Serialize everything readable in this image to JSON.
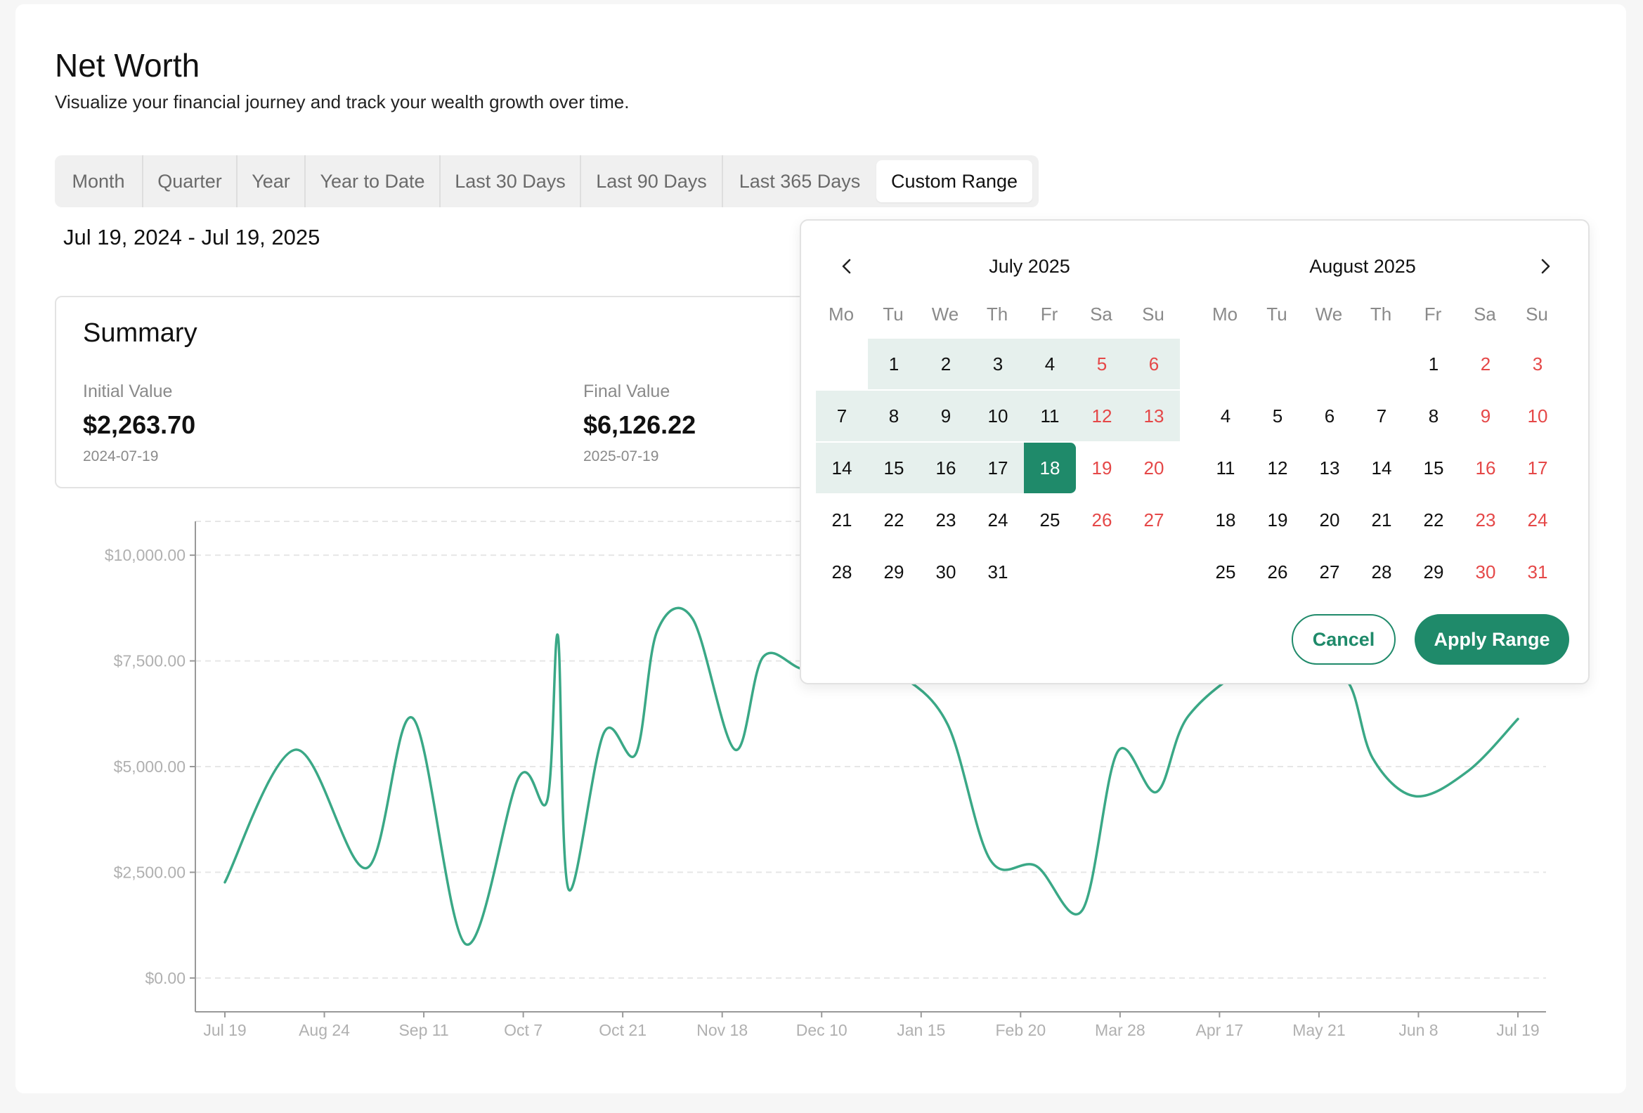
{
  "page": {
    "title": "Net Worth",
    "subtitle": "Visualize your financial journey and track your wealth growth over time."
  },
  "tabs": [
    {
      "label": "Month",
      "active": false
    },
    {
      "label": "Quarter",
      "active": false
    },
    {
      "label": "Year",
      "active": false
    },
    {
      "label": "Year to Date",
      "active": false
    },
    {
      "label": "Last 30 Days",
      "active": false
    },
    {
      "label": "Last 90 Days",
      "active": false
    },
    {
      "label": "Last 365 Days",
      "active": false
    },
    {
      "label": "Custom Range",
      "active": true
    }
  ],
  "range_text": "Jul 19, 2024 - Jul 19, 2025",
  "summary": {
    "title": "Summary",
    "initial": {
      "label": "Initial Value",
      "value": "$2,263.70",
      "date": "2024-07-19"
    },
    "final": {
      "label": "Final Value",
      "value": "$6,126.22",
      "date": "2025-07-19"
    }
  },
  "calendar": {
    "left_title": "July 2025",
    "right_title": "August 2025",
    "weekdays": [
      "Mo",
      "Tu",
      "We",
      "Th",
      "Fr",
      "Sa",
      "Su"
    ],
    "left_start_offset": 1,
    "left_days": 31,
    "right_start_offset": 4,
    "right_days": 31,
    "range_start": 1,
    "range_end": 18,
    "cancel_label": "Cancel",
    "apply_label": "Apply Range",
    "prev_icon": "chevron-left-icon",
    "next_icon": "chevron-right-icon",
    "accent": "#1f8a6a",
    "weekend_color": "#e54848"
  },
  "chart_data": {
    "type": "line",
    "x_tick_labels": [
      "Jul 19",
      "Aug 24",
      "Sep 11",
      "Oct 7",
      "Oct 21",
      "Nov 18",
      "Dec 10",
      "Jan 15",
      "Feb 20",
      "Mar 28",
      "Apr 17",
      "May 21",
      "Jun 8",
      "Jul 19"
    ],
    "y_tick_labels": [
      "$0.00",
      "$2,500.00",
      "$5,000.00",
      "$7,500.00",
      "$10,000.00"
    ],
    "y_ticks": [
      0,
      2500,
      5000,
      7500,
      10000
    ],
    "ylim": [
      -800,
      10800
    ],
    "x": [
      "2024-07-19",
      "2024-08-08",
      "2024-08-28",
      "2024-09-10",
      "2024-09-25",
      "2024-10-10",
      "2024-10-18",
      "2024-10-21",
      "2024-10-24",
      "2024-11-03",
      "2024-11-12",
      "2024-11-18",
      "2024-11-28",
      "2024-12-10",
      "2024-12-18",
      "2024-12-30",
      "2025-01-12",
      "2025-01-25",
      "2025-02-08",
      "2025-02-20",
      "2025-03-05",
      "2025-03-18",
      "2025-03-28",
      "2025-04-08",
      "2025-04-17",
      "2025-05-06",
      "2025-05-21",
      "2025-06-01",
      "2025-06-08",
      "2025-06-20",
      "2025-07-05",
      "2025-07-19"
    ],
    "series": [
      {
        "color": "#3aa886",
        "values": [
          2263.7,
          5400,
          2600,
          6150,
          800,
          4750,
          4200,
          8100,
          2100,
          5800,
          5300,
          8200,
          8500,
          5400,
          7600,
          7300,
          7700,
          7200,
          6000,
          2800,
          2650,
          1600,
          5350,
          4400,
          6200,
          7400,
          7100,
          7000,
          5200,
          4300,
          4900,
          6126.22
        ]
      }
    ],
    "grid": true,
    "gridline_values": [
      0,
      2500,
      5000,
      7500,
      10000
    ]
  }
}
